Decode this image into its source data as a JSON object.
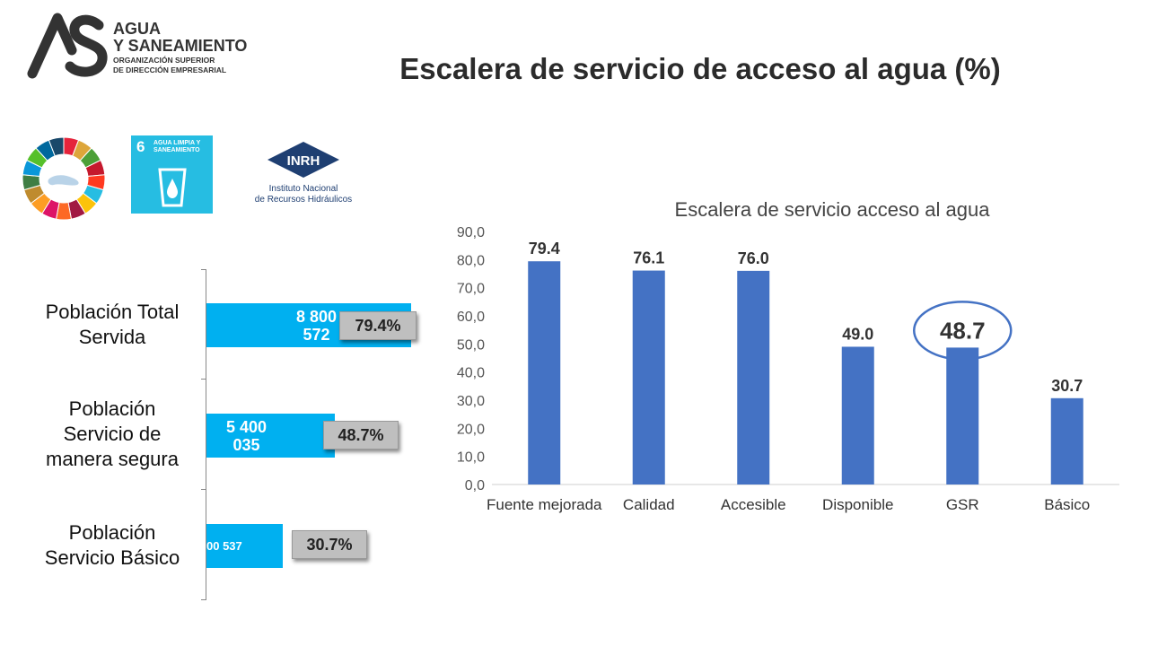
{
  "header": {
    "logo": {
      "line1": "AGUA",
      "line2": "Y SANEAMIENTO",
      "line3": "ORGANIZACIÓN SUPERIOR",
      "line4": "DE DIRECCIÓN EMPRESARIAL"
    },
    "title": "Escalera de servicio de acceso al agua (%)"
  },
  "badges": {
    "sdg6": {
      "number": "6",
      "label": "AGUA LIMPIA Y SANEAMIENTO"
    },
    "inrh": {
      "acronym": "INRH",
      "line1": "Instituto Nacional",
      "line2": "de Recursos Hidráulicos"
    }
  },
  "colors": {
    "hbar": "#00b0f0",
    "vbar": "#4472c4",
    "circle": "#4472c4"
  },
  "chart_data": [
    {
      "type": "bar",
      "orientation": "horizontal",
      "categories": [
        "Población Total Servida",
        "Población Servicio de manera segura",
        "Población Servicio Básico"
      ],
      "category_lines": [
        [
          "Población Total",
          "Servida"
        ],
        [
          "Población",
          "Servicio de",
          "manera segura"
        ],
        [
          "Población",
          "Servicio Básico"
        ]
      ],
      "value_labels": [
        [
          "8 800",
          "572"
        ],
        [
          "5 400",
          "035"
        ],
        [
          "00 537"
        ]
      ],
      "percent_labels": [
        "79.4%",
        "48.7%",
        "30.7%"
      ],
      "percents": [
        79.4,
        48.7,
        30.7
      ]
    },
    {
      "type": "bar",
      "title": "Escalera de servicio acceso al agua",
      "categories": [
        "Fuente mejorada",
        "Calidad",
        "Accesible",
        "Disponible",
        "GSR",
        "Básico"
      ],
      "values": [
        79.4,
        76.1,
        76.0,
        49.0,
        48.7,
        30.7
      ],
      "data_labels": [
        "79.4",
        "76.1",
        "76.0",
        "49.0",
        "48.7",
        "30.7"
      ],
      "highlighted_category": "GSR",
      "yticks": [
        "0,0",
        "10,0",
        "20,0",
        "30,0",
        "40,0",
        "50,0",
        "60,0",
        "70,0",
        "80,0",
        "90,0"
      ],
      "ylim": [
        0,
        90
      ],
      "xlabel": "",
      "ylabel": "",
      "grid": false
    }
  ]
}
